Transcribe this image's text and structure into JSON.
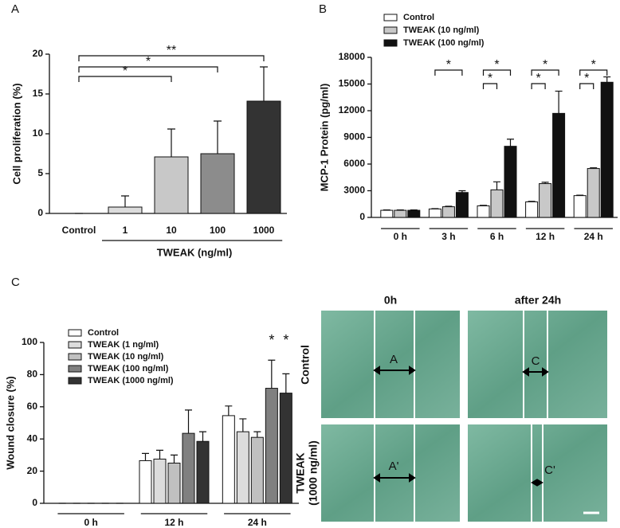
{
  "chart_data": [
    {
      "type": "bar",
      "panel": "A",
      "ylabel": "Cell proliferation (%)",
      "xlabel": "TWEAK (ng/ml)",
      "categories": [
        "Control",
        "1",
        "10",
        "100",
        "1000"
      ],
      "values": [
        0,
        0.8,
        7.1,
        7.5,
        14.1
      ],
      "errors": [
        0,
        1.4,
        3.5,
        4.1,
        4.3
      ],
      "colors": [
        "#ffffff",
        "#dcdcdc",
        "#c8c8c8",
        "#8c8c8c",
        "#333333"
      ],
      "ylim": [
        0,
        20
      ],
      "yticks": [
        0,
        5,
        10,
        15,
        20
      ],
      "annotations": [
        "*",
        "*",
        "**"
      ]
    },
    {
      "type": "bar",
      "panel": "B",
      "ylabel": "MCP-1 Protein (pg/ml)",
      "categories": [
        "0 h",
        "3 h",
        "6 h",
        "12 h",
        "24 h"
      ],
      "series": [
        {
          "name": "Control",
          "color": "#ffffff",
          "values": [
            800,
            950,
            1300,
            1750,
            2450
          ],
          "errors": [
            40,
            40,
            60,
            60,
            50
          ]
        },
        {
          "name": "TWEAK (10 ng/ml)",
          "color": "#c8c8c8",
          "values": [
            800,
            1200,
            3100,
            3800,
            5500
          ],
          "errors": [
            40,
            60,
            900,
            150,
            80
          ]
        },
        {
          "name": "TWEAK (100 ng/ml)",
          "color": "#111111",
          "values": [
            800,
            2800,
            8000,
            11700,
            15200
          ],
          "errors": [
            40,
            200,
            800,
            2500,
            600
          ]
        }
      ],
      "ylim": [
        0,
        18000
      ],
      "yticks": [
        0,
        3000,
        6000,
        9000,
        12000,
        15000,
        18000
      ],
      "annotations": [
        "*",
        "*",
        "*",
        "*",
        "*",
        "*",
        "*"
      ]
    },
    {
      "type": "bar",
      "panel": "C",
      "ylabel": "Wound closure (%)",
      "categories": [
        "0 h",
        "12 h",
        "24 h"
      ],
      "series": [
        {
          "name": "Control",
          "color": "#ffffff",
          "values": [
            0,
            26.5,
            54.5
          ],
          "errors": [
            0,
            4.5,
            6
          ]
        },
        {
          "name": "TWEAK (1 ng/ml)",
          "color": "#dcdcdc",
          "values": [
            0,
            27.5,
            44.5
          ],
          "errors": [
            0,
            5.5,
            8
          ]
        },
        {
          "name": "TWEAK (10 ng/ml)",
          "color": "#c0c0c0",
          "values": [
            0,
            25,
            41
          ],
          "errors": [
            0,
            5,
            3.5
          ]
        },
        {
          "name": "TWEAK (100 ng/ml)",
          "color": "#808080",
          "values": [
            0,
            43.5,
            71.5
          ],
          "errors": [
            0,
            14.5,
            17.5
          ]
        },
        {
          "name": "TWEAK (1000 ng/ml)",
          "color": "#333333",
          "values": [
            0,
            38.5,
            68.5
          ],
          "errors": [
            0,
            6,
            12
          ]
        }
      ],
      "ylim": [
        0,
        100
      ],
      "yticks": [
        0,
        20,
        40,
        60,
        80,
        100
      ],
      "annotations": [
        "*",
        "*"
      ]
    }
  ],
  "image_panel": {
    "column_headers": [
      "0h",
      "after 24h"
    ],
    "row_labels": [
      [
        "Control"
      ],
      [
        "TWEAK",
        "(1000 ng/ml)"
      ]
    ],
    "markers": [
      "A",
      "C",
      "A'",
      "C'"
    ]
  }
}
